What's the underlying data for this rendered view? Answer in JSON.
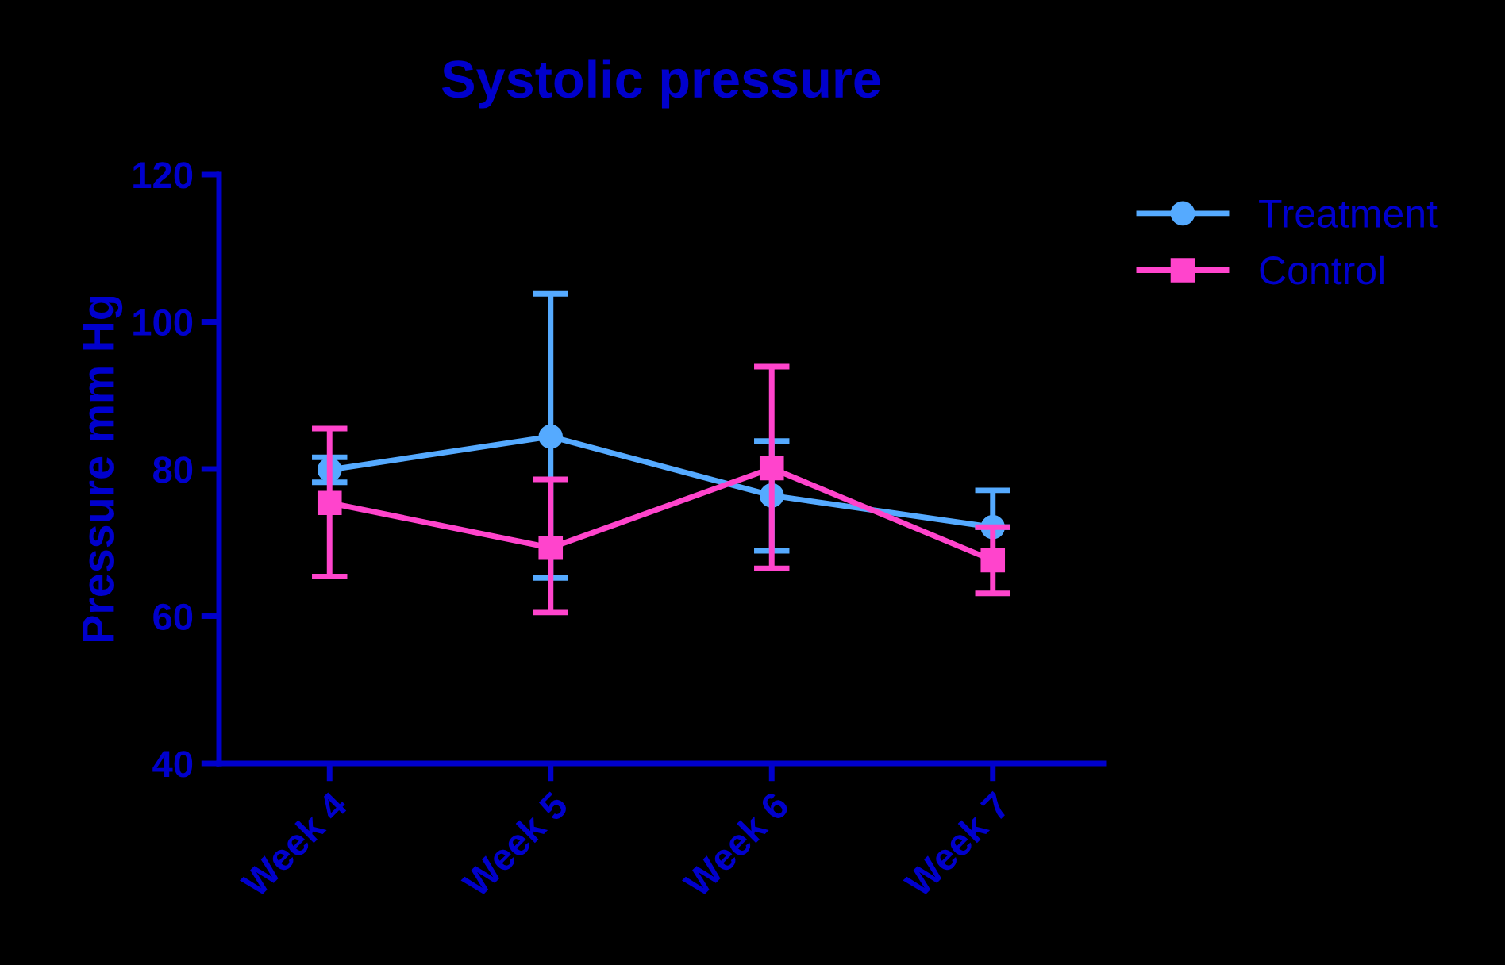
{
  "chart_data": {
    "type": "line",
    "title": "Systolic pressure",
    "ylabel": "Pressure mm Hg",
    "categories": [
      "Week 4",
      "Week 5",
      "Week 6",
      "Week 7"
    ],
    "series": [
      {
        "name": "Treatment",
        "color": "#55aaff",
        "marker": "circle",
        "values": [
          79.9,
          84.4,
          76.4,
          72.1
        ],
        "errors": [
          [
            78.2,
            81.6
          ],
          [
            65.2,
            103.8
          ],
          [
            68.9,
            83.8
          ],
          [
            72.1,
            77.1
          ]
        ]
      },
      {
        "name": "Control",
        "color": "#ff44cc",
        "marker": "square",
        "values": [
          75.4,
          69.3,
          80.1,
          67.6
        ],
        "errors": [
          [
            65.4,
            85.5
          ],
          [
            60.5,
            78.6
          ],
          [
            66.5,
            93.9
          ],
          [
            63.1,
            72.1
          ]
        ]
      }
    ],
    "ylim": [
      40,
      120
    ],
    "yticks": [
      40,
      60,
      80,
      100,
      120
    ],
    "grid": false,
    "legend": "top right"
  }
}
